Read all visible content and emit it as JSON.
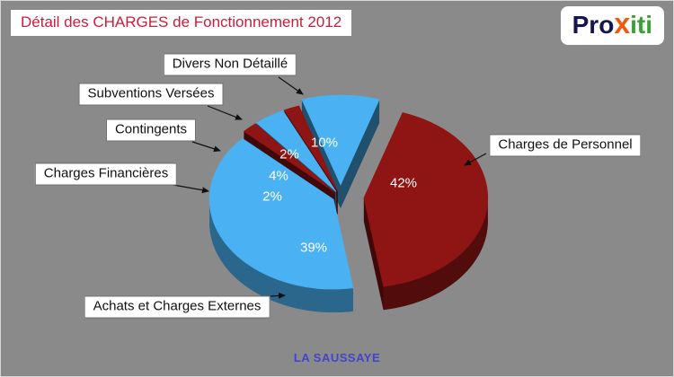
{
  "header": {
    "title": "Détail des CHARGES de Fonctionnement 2012",
    "title_color": "#c81e3c"
  },
  "logo": {
    "pro": "Pro",
    "x": "x",
    "iti": "iti",
    "colors": {
      "pro": "#16164f",
      "x": "#f05a0f",
      "iti": "#3aa035"
    }
  },
  "footer": {
    "text": "LA SAUSSAYE",
    "color": "#4343cf"
  },
  "chart_data": {
    "type": "pie",
    "title": "Détail des CHARGES de Fonctionnement 2012",
    "caption": "LA SAUSSAYE",
    "effect": "3d-exploded",
    "direction": "clockwise",
    "start_angle_deg": 270,
    "value_suffix": "%",
    "legend_position": "callout-labels",
    "slices": [
      {
        "id": "divers",
        "label": "Divers Non Détaillé",
        "value": 10,
        "color": "#4ab2f2",
        "explode": 18
      },
      {
        "id": "personnel",
        "label": "Charges de Personnel",
        "value": 42,
        "color": "#8f1414",
        "explode": 26
      },
      {
        "id": "achats",
        "label": "Achats et Charges Externes",
        "value": 39,
        "color": "#4ab2f2",
        "explode": 9
      },
      {
        "id": "financieres",
        "label": "Charges Financières",
        "value": 2,
        "color": "#8f1414",
        "explode": 9
      },
      {
        "id": "contingents",
        "label": "Contingents",
        "value": 4,
        "color": "#4ab2f2",
        "explode": 9
      },
      {
        "id": "subventions",
        "label": "Subventions Versées",
        "value": 2,
        "color": "#8f1414",
        "explode": 9
      }
    ]
  }
}
